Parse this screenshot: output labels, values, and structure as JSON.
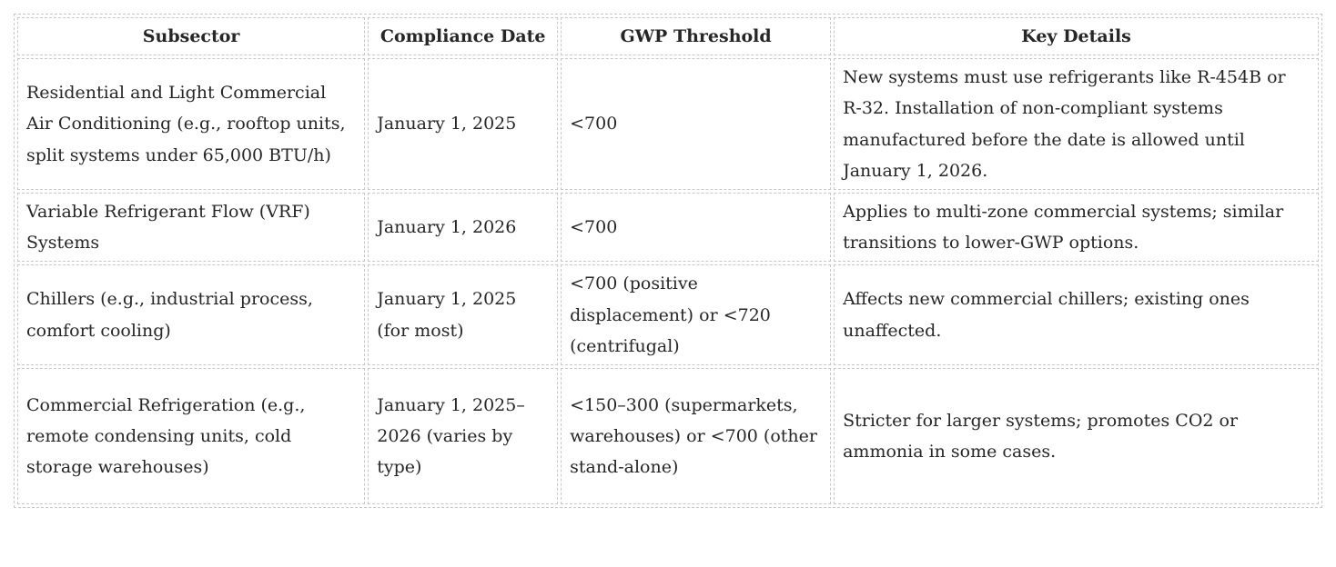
{
  "colors": {
    "border": "#c8c8c8",
    "text": "#262626",
    "background": "#ffffff"
  },
  "table": {
    "columns": {
      "subsector": "Subsector",
      "compliance_date": "Compliance Date",
      "gwp_threshold": "GWP Threshold",
      "key_details": "Key Details"
    },
    "rows": [
      {
        "subsector": "Residential and Light Commercial Air Conditioning (e.g., rooftop units, split systems under 65,000 BTU/h)",
        "compliance_date": "January 1, 2025",
        "gwp_threshold": "<700",
        "key_details": "New systems must use refrigerants like R-454B or R-32. Installation of non-compliant systems manufactured before the date is allowed until January 1, 2026."
      },
      {
        "subsector": "Variable Refrigerant Flow (VRF) Systems",
        "compliance_date": "January 1, 2026",
        "gwp_threshold": "<700",
        "key_details": "Applies to multi-zone commercial systems; similar transitions to lower-GWP options."
      },
      {
        "subsector": "Chillers (e.g., industrial process, comfort cooling)",
        "compliance_date": "January 1, 2025 (for most)",
        "gwp_threshold": "<700 (positive displacement) or <720 (centrifugal)",
        "key_details": "Affects new commercial chillers; existing ones unaffected."
      },
      {
        "subsector": "Commercial Refrigeration (e.g., remote condensing units, cold storage warehouses)",
        "compliance_date": "January 1, 2025–2026 (varies by type)",
        "gwp_threshold": "<150–300 (supermarkets, warehouses) or <700 (other stand-alone)",
        "key_details": "Stricter for larger systems; promotes CO2 or ammonia in some cases."
      }
    ]
  }
}
